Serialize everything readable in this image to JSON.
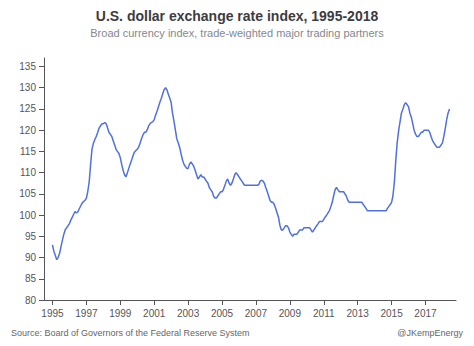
{
  "chart_data": {
    "type": "line",
    "title": "U.S. dollar exchange rate index, 1995-2018",
    "subtitle": "Broad currency index, trade-weighted major trading partners",
    "annotations": [
      "Source: Board of Governors of the Federal Reserve System",
      "@JKempEnergy"
    ],
    "xlim": [
      1994.5,
      2018.8
    ],
    "xticks": [
      1995,
      1997,
      1999,
      2001,
      2003,
      2005,
      2007,
      2009,
      2011,
      2013,
      2015,
      2017
    ],
    "ylim": [
      80,
      137
    ],
    "yticks": [
      80,
      85,
      90,
      95,
      100,
      105,
      110,
      115,
      120,
      125,
      130,
      135
    ],
    "grid": false,
    "x": [
      1995.0,
      1995.08,
      1995.17,
      1995.25,
      1995.33,
      1995.42,
      1995.5,
      1995.58,
      1995.67,
      1995.75,
      1995.83,
      1995.92,
      1996.0,
      1996.08,
      1996.17,
      1996.25,
      1996.33,
      1996.42,
      1996.5,
      1996.58,
      1996.67,
      1996.75,
      1996.83,
      1996.92,
      1997.0,
      1997.08,
      1997.17,
      1997.25,
      1997.33,
      1997.42,
      1997.5,
      1997.58,
      1997.67,
      1997.75,
      1997.83,
      1997.92,
      1998.0,
      1998.08,
      1998.17,
      1998.25,
      1998.33,
      1998.42,
      1998.5,
      1998.58,
      1998.67,
      1998.75,
      1998.83,
      1998.92,
      1999.0,
      1999.08,
      1999.17,
      1999.25,
      1999.33,
      1999.42,
      1999.5,
      1999.58,
      1999.67,
      1999.75,
      1999.83,
      1999.92,
      2000.0,
      2000.08,
      2000.17,
      2000.25,
      2000.33,
      2000.42,
      2000.5,
      2000.58,
      2000.67,
      2000.75,
      2000.83,
      2000.92,
      2001.0,
      2001.08,
      2001.17,
      2001.25,
      2001.33,
      2001.42,
      2001.5,
      2001.58,
      2001.67,
      2001.75,
      2001.83,
      2001.92,
      2002.0,
      2002.08,
      2002.17,
      2002.25,
      2002.33,
      2002.42,
      2002.5,
      2002.58,
      2002.67,
      2002.75,
      2002.83,
      2002.92,
      2003.0,
      2003.08,
      2003.17,
      2003.25,
      2003.33,
      2003.42,
      2003.5,
      2003.58,
      2003.67,
      2003.75,
      2003.83,
      2003.92,
      2004.0,
      2004.08,
      2004.17,
      2004.25,
      2004.33,
      2004.42,
      2004.5,
      2004.58,
      2004.67,
      2004.75,
      2004.83,
      2004.92,
      2005.0,
      2005.08,
      2005.17,
      2005.25,
      2005.33,
      2005.42,
      2005.5,
      2005.58,
      2005.67,
      2005.75,
      2005.83,
      2005.92,
      2006.0,
      2006.08,
      2006.17,
      2006.25,
      2006.33,
      2006.42,
      2006.5,
      2006.58,
      2006.67,
      2006.75,
      2006.83,
      2006.92,
      2007.0,
      2007.08,
      2007.17,
      2007.25,
      2007.33,
      2007.42,
      2007.5,
      2007.58,
      2007.67,
      2007.75,
      2007.83,
      2007.92,
      2008.0,
      2008.08,
      2008.17,
      2008.25,
      2008.33,
      2008.42,
      2008.5,
      2008.58,
      2008.67,
      2008.75,
      2008.83,
      2008.92,
      2009.0,
      2009.08,
      2009.17,
      2009.25,
      2009.33,
      2009.42,
      2009.5,
      2009.58,
      2009.67,
      2009.75,
      2009.83,
      2009.92,
      2010.0,
      2010.08,
      2010.17,
      2010.25,
      2010.33,
      2010.42,
      2010.5,
      2010.58,
      2010.67,
      2010.75,
      2010.83,
      2010.92,
      2011.0,
      2011.08,
      2011.17,
      2011.25,
      2011.33,
      2011.42,
      2011.5,
      2011.58,
      2011.67,
      2011.75,
      2011.83,
      2011.92,
      2012.0,
      2012.08,
      2012.17,
      2012.25,
      2012.33,
      2012.42,
      2012.5,
      2012.58,
      2012.67,
      2012.75,
      2012.83,
      2012.92,
      2013.0,
      2013.08,
      2013.17,
      2013.25,
      2013.33,
      2013.42,
      2013.5,
      2013.58,
      2013.67,
      2013.75,
      2013.83,
      2013.92,
      2014.0,
      2014.08,
      2014.17,
      2014.25,
      2014.33,
      2014.42,
      2014.5,
      2014.58,
      2014.67,
      2014.75,
      2014.83,
      2014.92,
      2015.0,
      2015.08,
      2015.17,
      2015.25,
      2015.33,
      2015.42,
      2015.5,
      2015.58,
      2015.67,
      2015.75,
      2015.83,
      2015.92,
      2016.0,
      2016.08,
      2016.17,
      2016.25,
      2016.33,
      2016.42,
      2016.5,
      2016.58,
      2016.67,
      2016.75,
      2016.83,
      2016.92,
      2017.0,
      2017.08,
      2017.17,
      2017.25,
      2017.33,
      2017.42,
      2017.5,
      2017.58,
      2017.67,
      2017.75,
      2017.83,
      2017.92,
      2018.0,
      2018.08,
      2018.17,
      2018.25,
      2018.33,
      2018.42
    ],
    "values": [
      93.0,
      91.5,
      90.5,
      89.5,
      90.0,
      91.0,
      92.5,
      94.0,
      95.5,
      96.5,
      97.0,
      97.5,
      98.0,
      98.8,
      99.5,
      100.2,
      100.8,
      100.5,
      100.8,
      101.5,
      102.2,
      102.8,
      103.2,
      103.5,
      104.0,
      105.5,
      108.0,
      112.0,
      115.5,
      117.0,
      117.8,
      118.5,
      119.5,
      120.5,
      121.0,
      121.5,
      121.5,
      121.8,
      121.5,
      120.5,
      119.5,
      119.0,
      118.5,
      117.5,
      116.5,
      115.5,
      115.0,
      114.5,
      113.5,
      112.0,
      110.5,
      109.5,
      109.0,
      110.0,
      111.0,
      112.0,
      113.0,
      114.0,
      114.8,
      115.2,
      115.5,
      116.0,
      117.0,
      118.0,
      118.8,
      119.5,
      119.5,
      120.0,
      121.0,
      121.5,
      121.8,
      122.0,
      122.5,
      123.5,
      124.5,
      125.5,
      126.5,
      127.5,
      128.5,
      129.5,
      130.0,
      129.5,
      128.5,
      127.5,
      126.5,
      124.0,
      122.0,
      120.0,
      118.0,
      117.0,
      116.0,
      114.5,
      113.0,
      112.0,
      111.5,
      111.0,
      111.0,
      112.0,
      112.5,
      112.0,
      111.5,
      110.5,
      109.5,
      108.5,
      109.0,
      109.5,
      109.0,
      109.0,
      108.5,
      108.0,
      107.5,
      106.5,
      106.0,
      105.5,
      104.5,
      104.0,
      104.0,
      104.5,
      105.0,
      105.5,
      105.5,
      106.0,
      107.0,
      108.0,
      108.5,
      107.5,
      107.0,
      107.5,
      108.5,
      109.5,
      110.0,
      109.5,
      109.0,
      108.5,
      108.0,
      107.5,
      107.0,
      107.0,
      107.0,
      107.0,
      107.0,
      107.0,
      107.0,
      107.0,
      107.0,
      107.0,
      107.2,
      108.0,
      108.2,
      108.0,
      107.5,
      106.5,
      105.5,
      104.5,
      103.5,
      103.0,
      103.0,
      102.5,
      101.5,
      100.5,
      99.5,
      97.5,
      96.5,
      96.5,
      97.0,
      97.5,
      97.5,
      97.0,
      96.0,
      95.5,
      95.0,
      95.5,
      95.5,
      95.5,
      96.0,
      96.5,
      96.5,
      96.5,
      97.0,
      97.0,
      97.0,
      97.0,
      97.0,
      96.5,
      96.0,
      96.5,
      97.0,
      97.5,
      98.0,
      98.5,
      98.5,
      98.5,
      99.0,
      99.5,
      100.0,
      100.5,
      101.0,
      102.0,
      103.0,
      104.5,
      106.0,
      106.5,
      106.0,
      105.5,
      105.5,
      105.5,
      105.5,
      105.0,
      104.5,
      103.5,
      103.0,
      103.0,
      103.0,
      103.0,
      103.0,
      103.0,
      103.0,
      103.0,
      103.0,
      103.0,
      102.5,
      102.0,
      101.5,
      101.0,
      101.0,
      101.0,
      101.0,
      101.0,
      101.0,
      101.0,
      101.0,
      101.0,
      101.0,
      101.0,
      101.0,
      101.0,
      101.0,
      101.5,
      102.0,
      102.5,
      103.0,
      104.5,
      108.0,
      113.0,
      117.0,
      120.0,
      122.0,
      124.0,
      125.0,
      126.0,
      126.5,
      126.0,
      125.5,
      124.0,
      123.0,
      121.5,
      120.0,
      119.0,
      118.5,
      118.5,
      119.0,
      119.5,
      119.5,
      120.0,
      120.0,
      120.0,
      120.0,
      119.5,
      118.5,
      117.5,
      117.0,
      116.5,
      116.0,
      116.0,
      116.0,
      116.5,
      117.0,
      118.5,
      120.5,
      122.5,
      124.0,
      125.0
    ]
  }
}
